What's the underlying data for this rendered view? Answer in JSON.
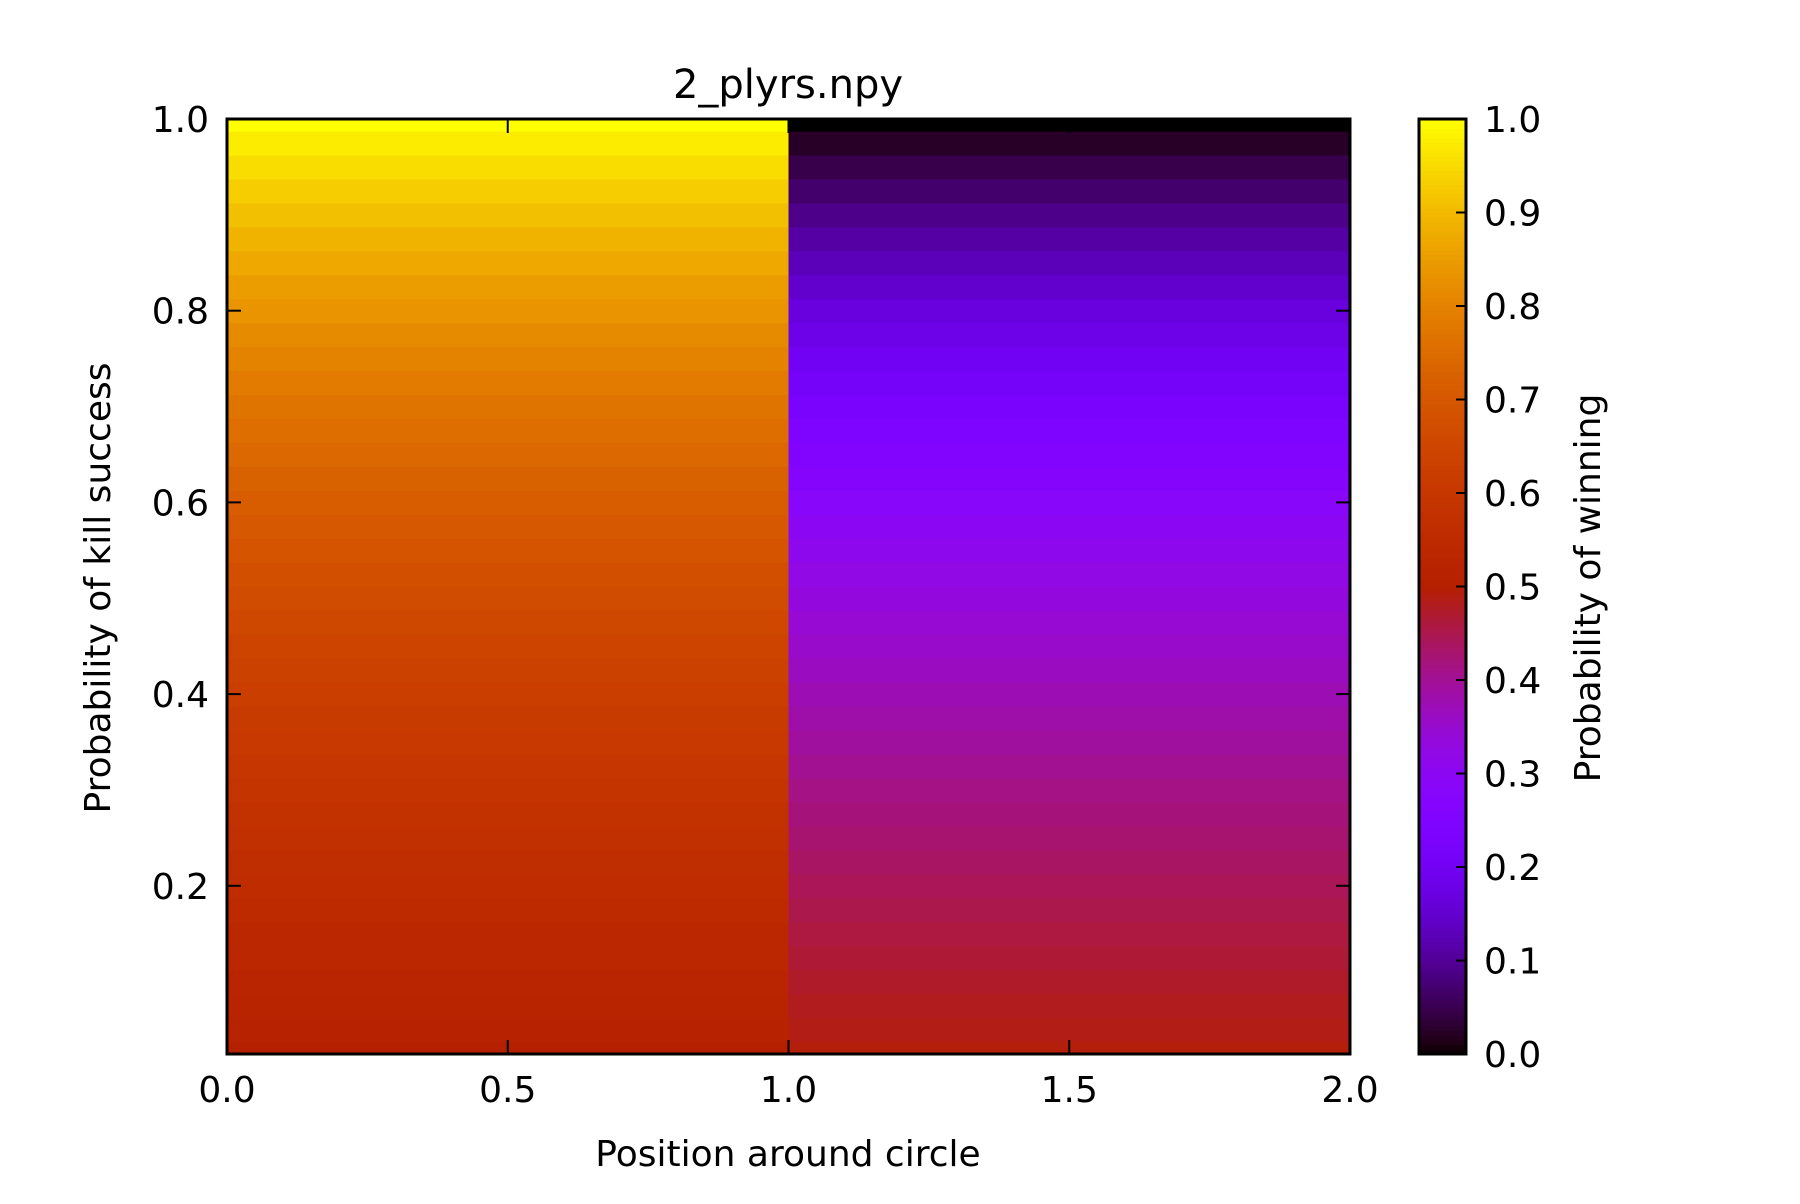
{
  "chart_data": {
    "type": "heatmap",
    "title": "2_plyrs.npy",
    "xlabel": "Position around circle",
    "ylabel": "Probability of kill success",
    "colorbar_label": "Probability of winning",
    "colormap": "gnuplot",
    "xlim": [
      0.0,
      2.0
    ],
    "ylim": [
      0.025,
      1.0
    ],
    "clim": [
      0.0,
      1.0
    ],
    "x_ticks": [
      "0.0",
      "0.5",
      "1.0",
      "1.5",
      "2.0"
    ],
    "y_ticks": [
      "0.2",
      "0.4",
      "0.6",
      "0.8",
      "1.0"
    ],
    "colorbar_ticks": [
      "0.0",
      "0.1",
      "0.2",
      "0.3",
      "0.4",
      "0.5",
      "0.6",
      "0.7",
      "0.8",
      "0.9",
      "1.0"
    ],
    "columns": [
      {
        "x_range": [
          0.0,
          1.0
        ],
        "formula": "1/(2-p)"
      },
      {
        "x_range": [
          1.0,
          2.0
        ],
        "formula": "(1-p)/(2-p)"
      }
    ],
    "p_values": [
      0.025,
      0.05,
      0.075,
      0.1,
      0.125,
      0.15,
      0.175,
      0.2,
      0.225,
      0.25,
      0.275,
      0.3,
      0.325,
      0.35,
      0.375,
      0.4,
      0.425,
      0.45,
      0.475,
      0.5,
      0.525,
      0.55,
      0.575,
      0.6,
      0.625,
      0.65,
      0.675,
      0.7,
      0.725,
      0.75,
      0.775,
      0.8,
      0.825,
      0.85,
      0.875,
      0.9,
      0.925,
      0.95,
      0.975,
      1.0
    ]
  }
}
